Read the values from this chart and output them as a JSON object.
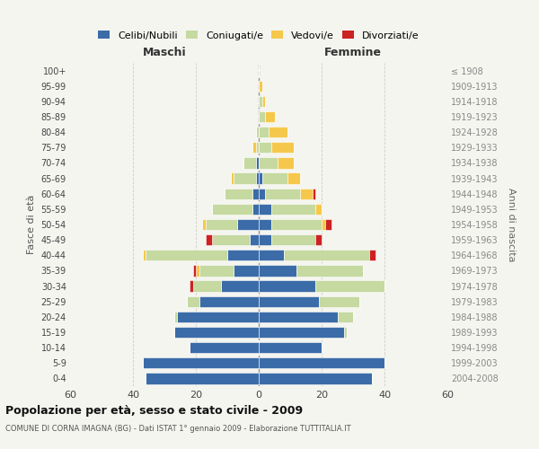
{
  "age_groups": [
    "0-4",
    "5-9",
    "10-14",
    "15-19",
    "20-24",
    "25-29",
    "30-34",
    "35-39",
    "40-44",
    "45-49",
    "50-54",
    "55-59",
    "60-64",
    "65-69",
    "70-74",
    "75-79",
    "80-84",
    "85-89",
    "90-94",
    "95-99",
    "100+"
  ],
  "birth_years": [
    "2004-2008",
    "1999-2003",
    "1994-1998",
    "1989-1993",
    "1984-1988",
    "1979-1983",
    "1974-1978",
    "1969-1973",
    "1964-1968",
    "1959-1963",
    "1954-1958",
    "1949-1953",
    "1944-1948",
    "1939-1943",
    "1934-1938",
    "1929-1933",
    "1924-1928",
    "1919-1923",
    "1914-1918",
    "1909-1913",
    "≤ 1908"
  ],
  "colors": {
    "celibi": "#3b6ca8",
    "coniugati": "#c5d9a0",
    "vedovi": "#f5c84c",
    "divorziati": "#cc2222"
  },
  "maschi": {
    "celibi": [
      36,
      37,
      22,
      27,
      26,
      19,
      12,
      8,
      10,
      3,
      7,
      2,
      2,
      1,
      1,
      0,
      0,
      0,
      0,
      0,
      0
    ],
    "coniugati": [
      0,
      0,
      0,
      0,
      1,
      4,
      9,
      11,
      26,
      12,
      10,
      13,
      9,
      7,
      4,
      1,
      1,
      0,
      0,
      0,
      0
    ],
    "vedovi": [
      0,
      0,
      0,
      0,
      0,
      0,
      0,
      1,
      1,
      0,
      1,
      0,
      0,
      1,
      0,
      1,
      0,
      0,
      0,
      0,
      0
    ],
    "divorziati": [
      0,
      0,
      0,
      0,
      0,
      0,
      1,
      1,
      0,
      2,
      0,
      0,
      0,
      0,
      0,
      0,
      0,
      0,
      0,
      0,
      0
    ]
  },
  "femmine": {
    "celibi": [
      36,
      40,
      20,
      27,
      25,
      19,
      18,
      12,
      8,
      4,
      4,
      4,
      2,
      1,
      0,
      0,
      0,
      0,
      0,
      0,
      0
    ],
    "coniugati": [
      0,
      0,
      0,
      1,
      5,
      13,
      22,
      21,
      27,
      14,
      16,
      14,
      11,
      8,
      6,
      4,
      3,
      2,
      1,
      0,
      0
    ],
    "vedovi": [
      0,
      0,
      0,
      0,
      0,
      0,
      0,
      0,
      0,
      0,
      1,
      2,
      4,
      4,
      5,
      7,
      6,
      3,
      1,
      1,
      0
    ],
    "divorziati": [
      0,
      0,
      0,
      0,
      0,
      0,
      0,
      0,
      2,
      2,
      2,
      0,
      1,
      0,
      0,
      0,
      0,
      0,
      0,
      0,
      0
    ]
  },
  "xlim": 60,
  "title": "Popolazione per età, sesso e stato civile - 2009",
  "subtitle": "COMUNE DI CORNA IMAGNA (BG) - Dati ISTAT 1° gennaio 2009 - Elaborazione TUTTITALIA.IT",
  "ylabel_left": "Fasce di età",
  "ylabel_right": "Anni di nascita",
  "xlabel_maschi": "Maschi",
  "xlabel_femmine": "Femmine",
  "legend_labels": [
    "Celibi/Nubili",
    "Coniugati/e",
    "Vedovi/e",
    "Divorziati/e"
  ],
  "bg_color": "#f5f5f0",
  "plot_bg": "#f5f5f0"
}
